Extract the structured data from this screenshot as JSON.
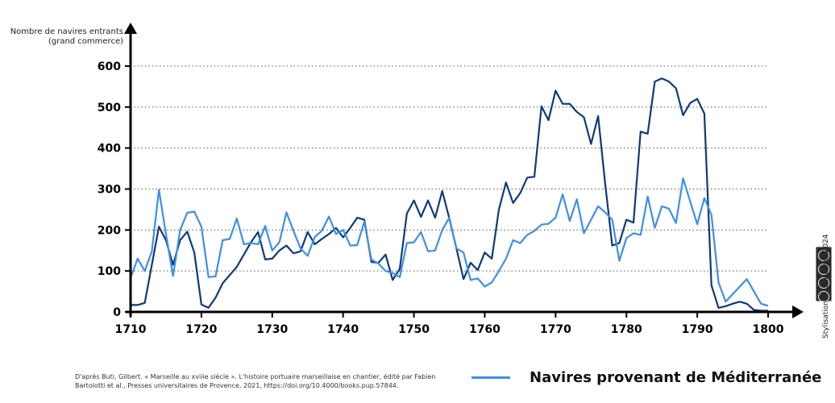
{
  "chart_data": {
    "type": "line",
    "ylabel_lines": [
      "Nombre de navires entrants",
      "(grand commerce)"
    ],
    "xlabel": "",
    "xlim": [
      1710,
      1800
    ],
    "ylim": [
      0,
      650
    ],
    "x_ticks": [
      1710,
      1720,
      1730,
      1740,
      1750,
      1760,
      1770,
      1780,
      1790,
      1800
    ],
    "y_ticks": [
      0,
      100,
      200,
      300,
      400,
      500,
      600
    ],
    "grid": "horizontal-dotted",
    "series": [
      {
        "name": "",
        "color": "#0d3a7a",
        "x": [
          1710,
          1711,
          1712,
          1713,
          1714,
          1715,
          1716,
          1717,
          1718,
          1719,
          1720,
          1721,
          1722,
          1723,
          1724,
          1725,
          1726,
          1727,
          1728,
          1729,
          1730,
          1731,
          1732,
          1733,
          1734,
          1735,
          1736,
          1737,
          1738,
          1739,
          1740,
          1741,
          1742,
          1743,
          1744,
          1745,
          1746,
          1747,
          1748,
          1749,
          1750,
          1751,
          1752,
          1753,
          1754,
          1755,
          1756,
          1757,
          1758,
          1759,
          1760,
          1761,
          1762,
          1763,
          1764,
          1765,
          1766,
          1767,
          1768,
          1769,
          1770,
          1771,
          1772,
          1773,
          1774,
          1775,
          1776,
          1777,
          1778,
          1779,
          1780,
          1781,
          1782,
          1783,
          1784,
          1785,
          1786,
          1787,
          1788,
          1789,
          1790,
          1791,
          1792,
          1793,
          1794,
          1795,
          1796,
          1797,
          1798,
          1799,
          1800
        ],
        "y": [
          17,
          17,
          22,
          115,
          208,
          175,
          115,
          175,
          196,
          145,
          18,
          10,
          35,
          70,
          90,
          110,
          140,
          170,
          195,
          128,
          130,
          150,
          162,
          143,
          148,
          195,
          165,
          178,
          190,
          205,
          182,
          205,
          230,
          225,
          122,
          120,
          140,
          78,
          105,
          240,
          272,
          232,
          272,
          230,
          295,
          228,
          155,
          80,
          120,
          102,
          145,
          130,
          250,
          316,
          266,
          290,
          328,
          330,
          502,
          468,
          540,
          508,
          508,
          488,
          475,
          410,
          478,
          312,
          162,
          168,
          225,
          218,
          440,
          435,
          562,
          570,
          562,
          546,
          480,
          510,
          520,
          484,
          65,
          10,
          14,
          20,
          25,
          20,
          5,
          3,
          3
        ]
      },
      {
        "name": "Navires provenant de Méditerranée",
        "color": "#3d8fe8",
        "x": [
          1710,
          1711,
          1712,
          1713,
          1714,
          1715,
          1716,
          1717,
          1718,
          1719,
          1720,
          1721,
          1722,
          1723,
          1724,
          1725,
          1726,
          1727,
          1728,
          1729,
          1730,
          1731,
          1732,
          1733,
          1734,
          1735,
          1736,
          1737,
          1738,
          1739,
          1740,
          1741,
          1742,
          1743,
          1744,
          1745,
          1746,
          1747,
          1748,
          1749,
          1750,
          1751,
          1752,
          1753,
          1754,
          1755,
          1756,
          1757,
          1758,
          1759,
          1760,
          1761,
          1762,
          1763,
          1764,
          1765,
          1766,
          1767,
          1768,
          1769,
          1770,
          1771,
          1772,
          1773,
          1774,
          1775,
          1776,
          1777,
          1778,
          1779,
          1780,
          1781,
          1782,
          1783,
          1784,
          1785,
          1786,
          1787,
          1788,
          1789,
          1790,
          1791,
          1792,
          1793,
          1794,
          1797,
          1799,
          1800
        ],
        "y": [
          83,
          130,
          100,
          148,
          298,
          190,
          88,
          200,
          242,
          245,
          208,
          85,
          87,
          175,
          178,
          228,
          165,
          168,
          165,
          210,
          150,
          170,
          243,
          198,
          155,
          137,
          183,
          198,
          233,
          190,
          200,
          162,
          163,
          220,
          128,
          118,
          100,
          95,
          85,
          168,
          170,
          195,
          148,
          150,
          200,
          230,
          155,
          145,
          78,
          82,
          62,
          72,
          100,
          130,
          175,
          168,
          188,
          198,
          213,
          215,
          230,
          287,
          222,
          275,
          192,
          225,
          258,
          243,
          225,
          125,
          180,
          192,
          188,
          282,
          205,
          258,
          252,
          217,
          326,
          270,
          214,
          278,
          237,
          72,
          25,
          80,
          20,
          15
        ]
      }
    ]
  },
  "legend": {
    "label": "Navires provenant de Méditerranée",
    "color": "#3d8fe8"
  },
  "source_text": "D'après Buti, Gilbert. « Marseille au xviiie siècle ». L'histoire portuaire marseillaise en chantier, édité par Fabien Bartolotti et al., Presses universitaires de Provence, 2021, https://doi.org/10.4000/books.pup.57844.",
  "credit_text": "Stylisation: F. Sauzeau, 2024",
  "license_icon": "cc-by-nc-sa-icon"
}
